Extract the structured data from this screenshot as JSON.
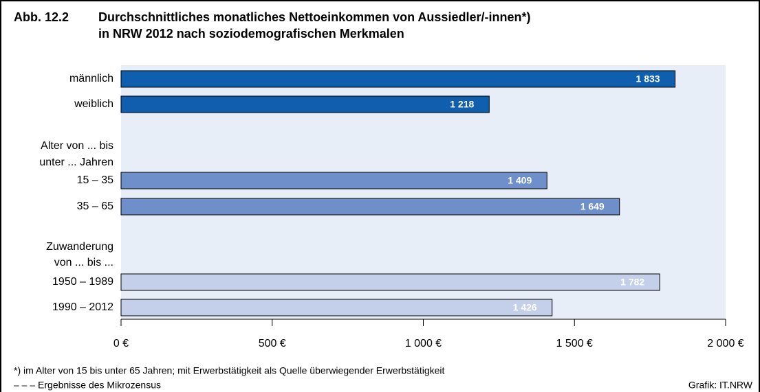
{
  "chart_data": {
    "type": "bar",
    "orientation": "horizontal",
    "figure_number": "Abb. 12.2",
    "title": [
      "Durchschnittliches monatliches Nettoeinkommen von Aussiedler/-innen*)",
      "in NRW 2012 nach soziodemografischen Merkmalen"
    ],
    "group_labels": [
      [
        "Alter von ... bis",
        "unter ... Jahren"
      ],
      [
        "Zuwanderung",
        "von ... bis ..."
      ]
    ],
    "categories": [
      "männlich",
      "weiblich",
      "15 – 35",
      "35 – 65",
      "1950 – 1989",
      "1990 – 2012"
    ],
    "values": [
      1833,
      1218,
      1409,
      1649,
      1782,
      1426
    ],
    "value_labels": [
      "1 833",
      "1 218",
      "1 409",
      "1 649",
      "1 782",
      "1 426"
    ],
    "colors": [
      "#0f5fae",
      "#0f5fae",
      "#6f8fcb",
      "#6f8fcb",
      "#c4cfe9",
      "#c4cfe9"
    ],
    "xlim": [
      0,
      2000
    ],
    "xticks": [
      {
        "value": 0,
        "label": "0 €"
      },
      {
        "value": 500,
        "label": "500 €"
      },
      {
        "value": 1000,
        "label": "1 000 €"
      },
      {
        "value": 1500,
        "label": "1 500 €"
      },
      {
        "value": 2000,
        "label": "2 000 €"
      }
    ],
    "notes": [
      "*) im Alter von 15 bis unter 65 Jahren; mit Erwerbstätigkeit als Quelle überwiegender Erwerbstätigkeit",
      "– – – Ergebnisse des Mikrozensus"
    ],
    "source": "Grafik: IT.NRW"
  }
}
